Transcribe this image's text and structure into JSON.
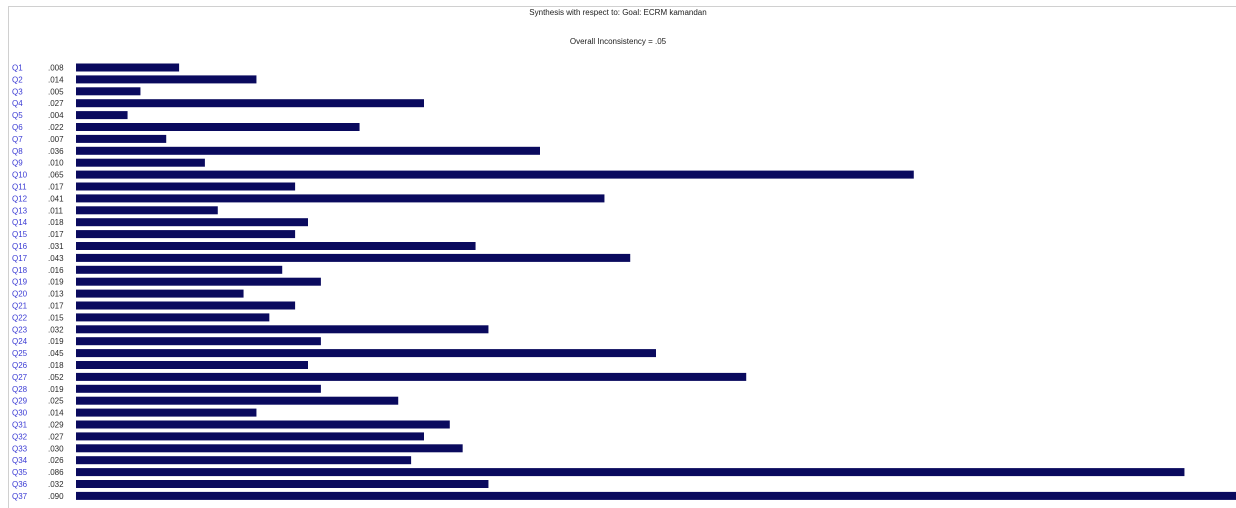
{
  "chart_data": {
    "type": "bar",
    "orientation": "horizontal",
    "title": "Synthesis with respect to: Goal: ECRM kamandan",
    "subtitle": "Overall Inconsistency = .05",
    "categories": [
      "Q1",
      "Q2",
      "Q3",
      "Q4",
      "Q5",
      "Q6",
      "Q7",
      "Q8",
      "Q9",
      "Q10",
      "Q11",
      "Q12",
      "Q13",
      "Q14",
      "Q15",
      "Q16",
      "Q17",
      "Q18",
      "Q19",
      "Q20",
      "Q21",
      "Q22",
      "Q23",
      "Q24",
      "Q25",
      "Q26",
      "Q27",
      "Q28",
      "Q29",
      "Q30",
      "Q31",
      "Q32",
      "Q33",
      "Q34",
      "Q35",
      "Q36",
      "Q37"
    ],
    "value_labels": [
      ".008",
      ".014",
      ".005",
      ".027",
      ".004",
      ".022",
      ".007",
      ".036",
      ".010",
      ".065",
      ".017",
      ".041",
      ".011",
      ".018",
      ".017",
      ".031",
      ".043",
      ".016",
      ".019",
      ".013",
      ".017",
      ".015",
      ".032",
      ".019",
      ".045",
      ".018",
      ".052",
      ".019",
      ".025",
      ".014",
      ".029",
      ".027",
      ".030",
      ".026",
      ".086",
      ".032",
      ".090"
    ],
    "values": [
      0.008,
      0.014,
      0.005,
      0.027,
      0.004,
      0.022,
      0.007,
      0.036,
      0.01,
      0.065,
      0.017,
      0.041,
      0.011,
      0.018,
      0.017,
      0.031,
      0.043,
      0.016,
      0.019,
      0.013,
      0.017,
      0.015,
      0.032,
      0.019,
      0.045,
      0.018,
      0.052,
      0.019,
      0.025,
      0.014,
      0.029,
      0.027,
      0.03,
      0.026,
      0.086,
      0.032,
      0.09
    ],
    "xlim": [
      0,
      0.09
    ],
    "bar_color": "#0a0a5e",
    "label_color": "#3b3bd4",
    "grid": false
  }
}
